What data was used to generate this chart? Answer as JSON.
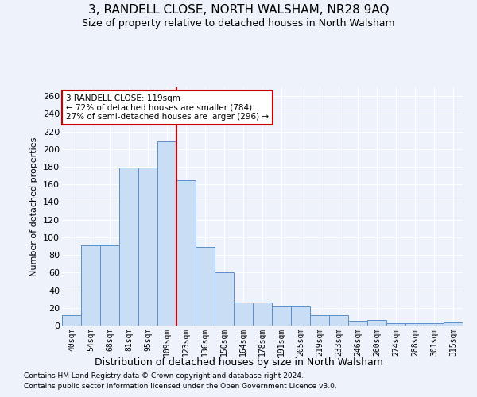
{
  "title": "3, RANDELL CLOSE, NORTH WALSHAM, NR28 9AQ",
  "subtitle": "Size of property relative to detached houses in North Walsham",
  "xlabel": "Distribution of detached houses by size in North Walsham",
  "ylabel": "Number of detached properties",
  "bar_labels": [
    "40sqm",
    "54sqm",
    "68sqm",
    "81sqm",
    "95sqm",
    "109sqm",
    "123sqm",
    "136sqm",
    "150sqm",
    "164sqm",
    "178sqm",
    "191sqm",
    "205sqm",
    "219sqm",
    "233sqm",
    "246sqm",
    "260sqm",
    "274sqm",
    "288sqm",
    "301sqm",
    "315sqm"
  ],
  "bar_values": [
    12,
    91,
    91,
    179,
    179,
    209,
    165,
    89,
    60,
    26,
    26,
    22,
    22,
    12,
    12,
    5,
    6,
    3,
    3,
    3,
    4
  ],
  "bar_color": "#c9ddf5",
  "bar_edge_color": "#5b8fc9",
  "ylim": [
    0,
    270
  ],
  "yticks": [
    0,
    20,
    40,
    60,
    80,
    100,
    120,
    140,
    160,
    180,
    200,
    220,
    240,
    260
  ],
  "vline_x_index": 5.5,
  "vline_color": "#cc0000",
  "annotation_text": "3 RANDELL CLOSE: 119sqm\n← 72% of detached houses are smaller (784)\n27% of semi-detached houses are larger (296) →",
  "annotation_box_color": "#cc0000",
  "footer_line1": "Contains HM Land Registry data © Crown copyright and database right 2024.",
  "footer_line2": "Contains public sector information licensed under the Open Government Licence v3.0.",
  "background_color": "#eef2fa",
  "grid_color": "#ffffff"
}
